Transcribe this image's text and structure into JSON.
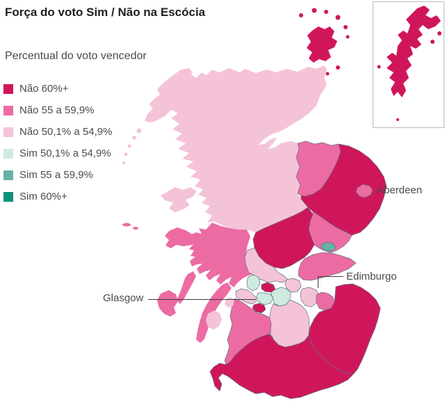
{
  "title": "Força do voto Sim / Não na Escócia",
  "subtitle": "Percentual do voto vencedor",
  "legend": {
    "items": [
      {
        "key": "nao_60",
        "label": "Não 60%+",
        "color": "#d0165b"
      },
      {
        "key": "nao_55",
        "label": "Não 55 a 59,9%",
        "color": "#ed6ba3"
      },
      {
        "key": "nao_50",
        "label": "Não 50,1% a 54,9%",
        "color": "#f4c3d8"
      },
      {
        "key": "sim_50",
        "label": "Sim 50,1% a 54,9%",
        "color": "#cdebdf"
      },
      {
        "key": "sim_55",
        "label": "Sim 55 a 59,9%",
        "color": "#65b3a6"
      },
      {
        "key": "sim_60",
        "label": "Sim 60%+",
        "color": "#0d9179"
      }
    ]
  },
  "map": {
    "border_color": "#5f7083",
    "leader_line_color": "#3a3a3a",
    "inset_border_color": "#bbbbbb",
    "labels": {
      "aberdeen": "Aberdeen",
      "edinburgh": "Edimburgo",
      "glasgow": "Glasgow"
    },
    "regions": {
      "highland": "nao_50",
      "outer_hebrides": "nao_50",
      "skye": "nao_50",
      "orkney": "nao_60",
      "shetland": "nao_60",
      "moray": "nao_55",
      "aberdeenshire": "nao_60",
      "aberdeen_city": "nao_55",
      "angus": "nao_55",
      "dundee": "sim_55",
      "perth_kinross": "nao_60",
      "stirling": "nao_50",
      "fife": "nao_55",
      "argyll": "nao_55",
      "west_dunbartonshire": "sim_50",
      "east_dunbartonshire": "nao_60",
      "glasgow": "sim_50",
      "north_lanarkshire": "sim_50",
      "renfrewshire": "nao_50",
      "east_renfrewshire": "nao_60",
      "falkirk": "nao_50",
      "west_lothian": "nao_50",
      "edinburgh": "nao_55",
      "borders_lothians": "nao_60",
      "south_lanarkshire": "nao_50",
      "ayrshire": "nao_55",
      "dumfries_galloway": "nao_60",
      "arran": "nao_50",
      "bute": "nao_50",
      "tiree": "nao_55"
    }
  }
}
